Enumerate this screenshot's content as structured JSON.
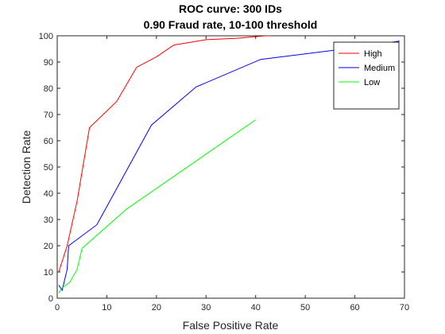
{
  "chart_data": {
    "type": "line",
    "title": "ROC curve: 300 IDs",
    "subtitle": "0.90 Fraud rate, 10-100 threshold",
    "xlabel": "False Positive Rate",
    "ylabel": "Detection Rate",
    "xlim": [
      0,
      70
    ],
    "ylim": [
      0,
      100
    ],
    "x_ticks": [
      "0",
      "10",
      "20",
      "30",
      "40",
      "50",
      "60",
      "70"
    ],
    "y_ticks": [
      "0",
      "10",
      "20",
      "30",
      "40",
      "50",
      "60",
      "70",
      "80",
      "90",
      "100"
    ],
    "grid": false,
    "legend_position": "top-right",
    "series": [
      {
        "name": "High",
        "color": "#ff0000",
        "points": [
          [
            0.3,
            10
          ],
          [
            2,
            20
          ],
          [
            4,
            37
          ],
          [
            6.5,
            65
          ],
          [
            12,
            75
          ],
          [
            16,
            88
          ],
          [
            20,
            92
          ],
          [
            23.5,
            96.5
          ],
          [
            30,
            98.5
          ],
          [
            36,
            99
          ],
          [
            42,
            100
          ],
          [
            43,
            100
          ]
        ]
      },
      {
        "name": "Medium",
        "color": "#0000ff",
        "points": [
          [
            0.3,
            5
          ],
          [
            1,
            3
          ],
          [
            2,
            11
          ],
          [
            2.3,
            20
          ],
          [
            8,
            28
          ],
          [
            19,
            66
          ],
          [
            28,
            80.5
          ],
          [
            41,
            91
          ],
          [
            60,
            95.5
          ],
          [
            69,
            98
          ]
        ]
      },
      {
        "name": "Low",
        "color": "#00ff00",
        "points": [
          [
            0.3,
            2
          ],
          [
            1,
            4
          ],
          [
            2.5,
            6
          ],
          [
            4,
            11
          ],
          [
            5,
            19
          ],
          [
            14,
            34
          ],
          [
            40,
            68
          ]
        ]
      }
    ]
  }
}
